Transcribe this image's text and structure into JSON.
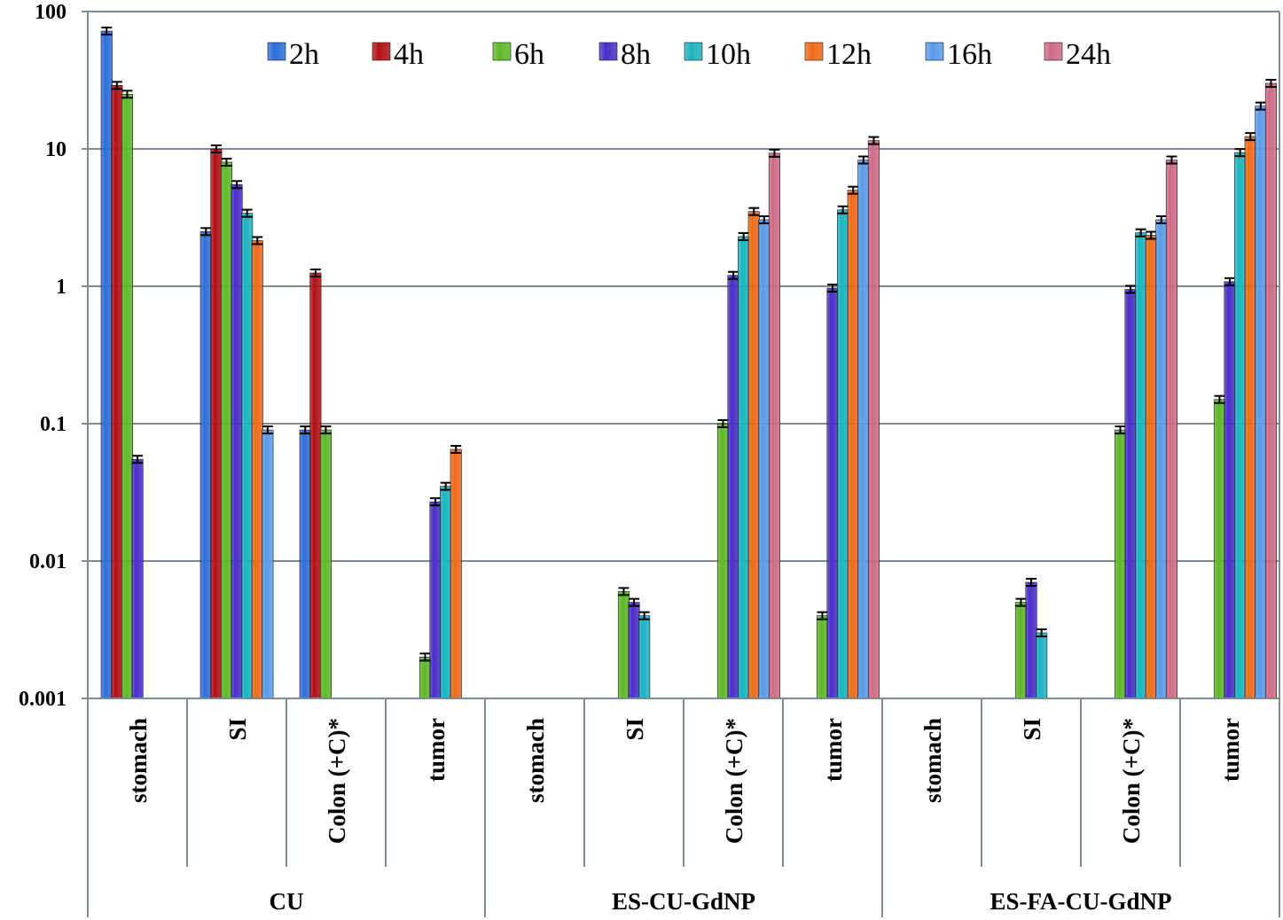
{
  "chart_data": {
    "type": "bar",
    "title": "",
    "xlabel": "",
    "ylabel": "",
    "y_scale": "log",
    "ylim": [
      0.001,
      100
    ],
    "y_ticks": [
      {
        "value": 100,
        "label": "100"
      },
      {
        "value": 10,
        "label": "10"
      },
      {
        "value": 1,
        "label": "1"
      },
      {
        "value": 0.1,
        "label": "0.1"
      },
      {
        "value": 0.01,
        "label": "0.01"
      },
      {
        "value": 0.001,
        "label": "0.001"
      }
    ],
    "grid": true,
    "legend_position": "top",
    "groups": [
      {
        "label": "CU",
        "categories": [
          "stomach",
          "SI",
          "Colon (+C)*",
          "tumor"
        ]
      },
      {
        "label": "ES-CU-GdNP",
        "categories": [
          "stomach",
          "SI",
          "Colon (+C)*",
          "tumor"
        ]
      },
      {
        "label": "ES-FA-CU-GdNP",
        "categories": [
          "stomach",
          "SI",
          "Colon (+C)*",
          "tumor"
        ]
      }
    ],
    "series": [
      {
        "name": "2h",
        "color": "#2e6fd9",
        "values": [
          72,
          2.5,
          0.09,
          null,
          null,
          null,
          null,
          null,
          null,
          null,
          null,
          null
        ]
      },
      {
        "name": "4h",
        "color": "#b31217",
        "values": [
          29,
          10,
          1.25,
          null,
          null,
          null,
          null,
          null,
          null,
          null,
          null,
          null
        ]
      },
      {
        "name": "6h",
        "color": "#5fb82a",
        "values": [
          25,
          8,
          0.09,
          0.002,
          null,
          0.006,
          0.1,
          0.004,
          null,
          0.005,
          0.09,
          0.15
        ]
      },
      {
        "name": "8h",
        "color": "#4b2fc9",
        "values": [
          0.055,
          5.5,
          null,
          0.027,
          null,
          0.005,
          1.2,
          0.97,
          null,
          0.007,
          0.95,
          1.08
        ]
      },
      {
        "name": "10h",
        "color": "#1fb3bf",
        "values": [
          null,
          3.4,
          null,
          0.035,
          null,
          0.004,
          2.3,
          3.6,
          null,
          0.003,
          2.45,
          9.4
        ]
      },
      {
        "name": "12h",
        "color": "#ef6a1a",
        "values": [
          null,
          2.15,
          null,
          0.065,
          null,
          null,
          3.5,
          5.0,
          null,
          null,
          2.35,
          12.3
        ]
      },
      {
        "name": "16h",
        "color": "#5b9be8",
        "values": [
          null,
          0.09,
          null,
          null,
          null,
          null,
          3.05,
          8.3,
          null,
          null,
          3.05,
          20.5
        ]
      },
      {
        "name": "24h",
        "color": "#cf6b87",
        "values": [
          null,
          null,
          null,
          null,
          null,
          null,
          9.3,
          11.5,
          null,
          null,
          8.3,
          30
        ]
      }
    ]
  }
}
